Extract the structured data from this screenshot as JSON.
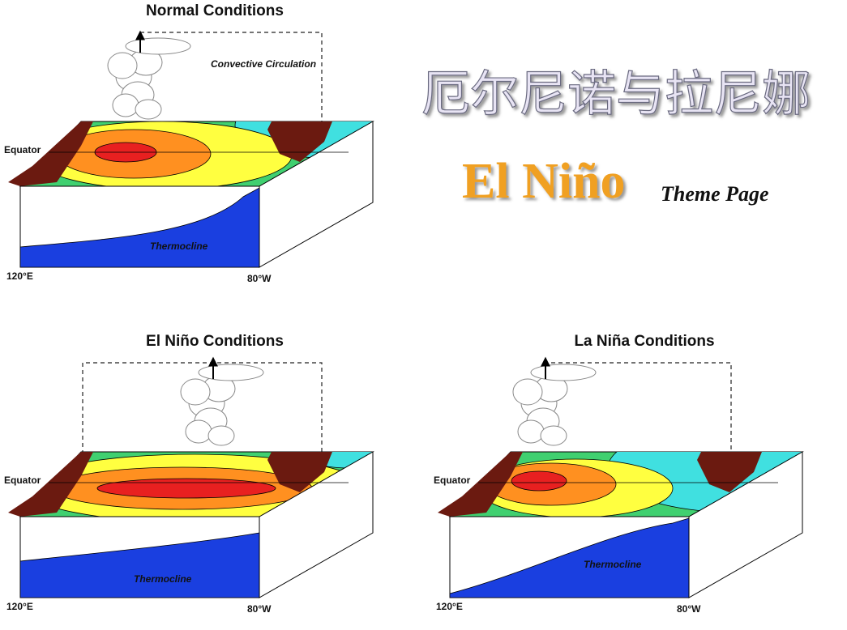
{
  "header": {
    "title_cn": "厄尔尼诺与拉尼娜",
    "title_en": "El Niño",
    "subtitle": "Theme Page"
  },
  "panels": [
    {
      "title": "Normal Conditions",
      "circulation": "Convective Circulation",
      "equator": "Equator",
      "thermocline": "Thermocline",
      "lon_west": "120°E",
      "lon_east": "80°W"
    },
    {
      "title": "El Niño Conditions",
      "equator": "Equator",
      "thermocline": "Thermocline",
      "lon_west": "120°E",
      "lon_east": "80°W"
    },
    {
      "title": "La Niña Conditions",
      "equator": "Equator",
      "thermocline": "Thermocline",
      "lon_west": "120°E",
      "lon_east": "80°W"
    }
  ]
}
